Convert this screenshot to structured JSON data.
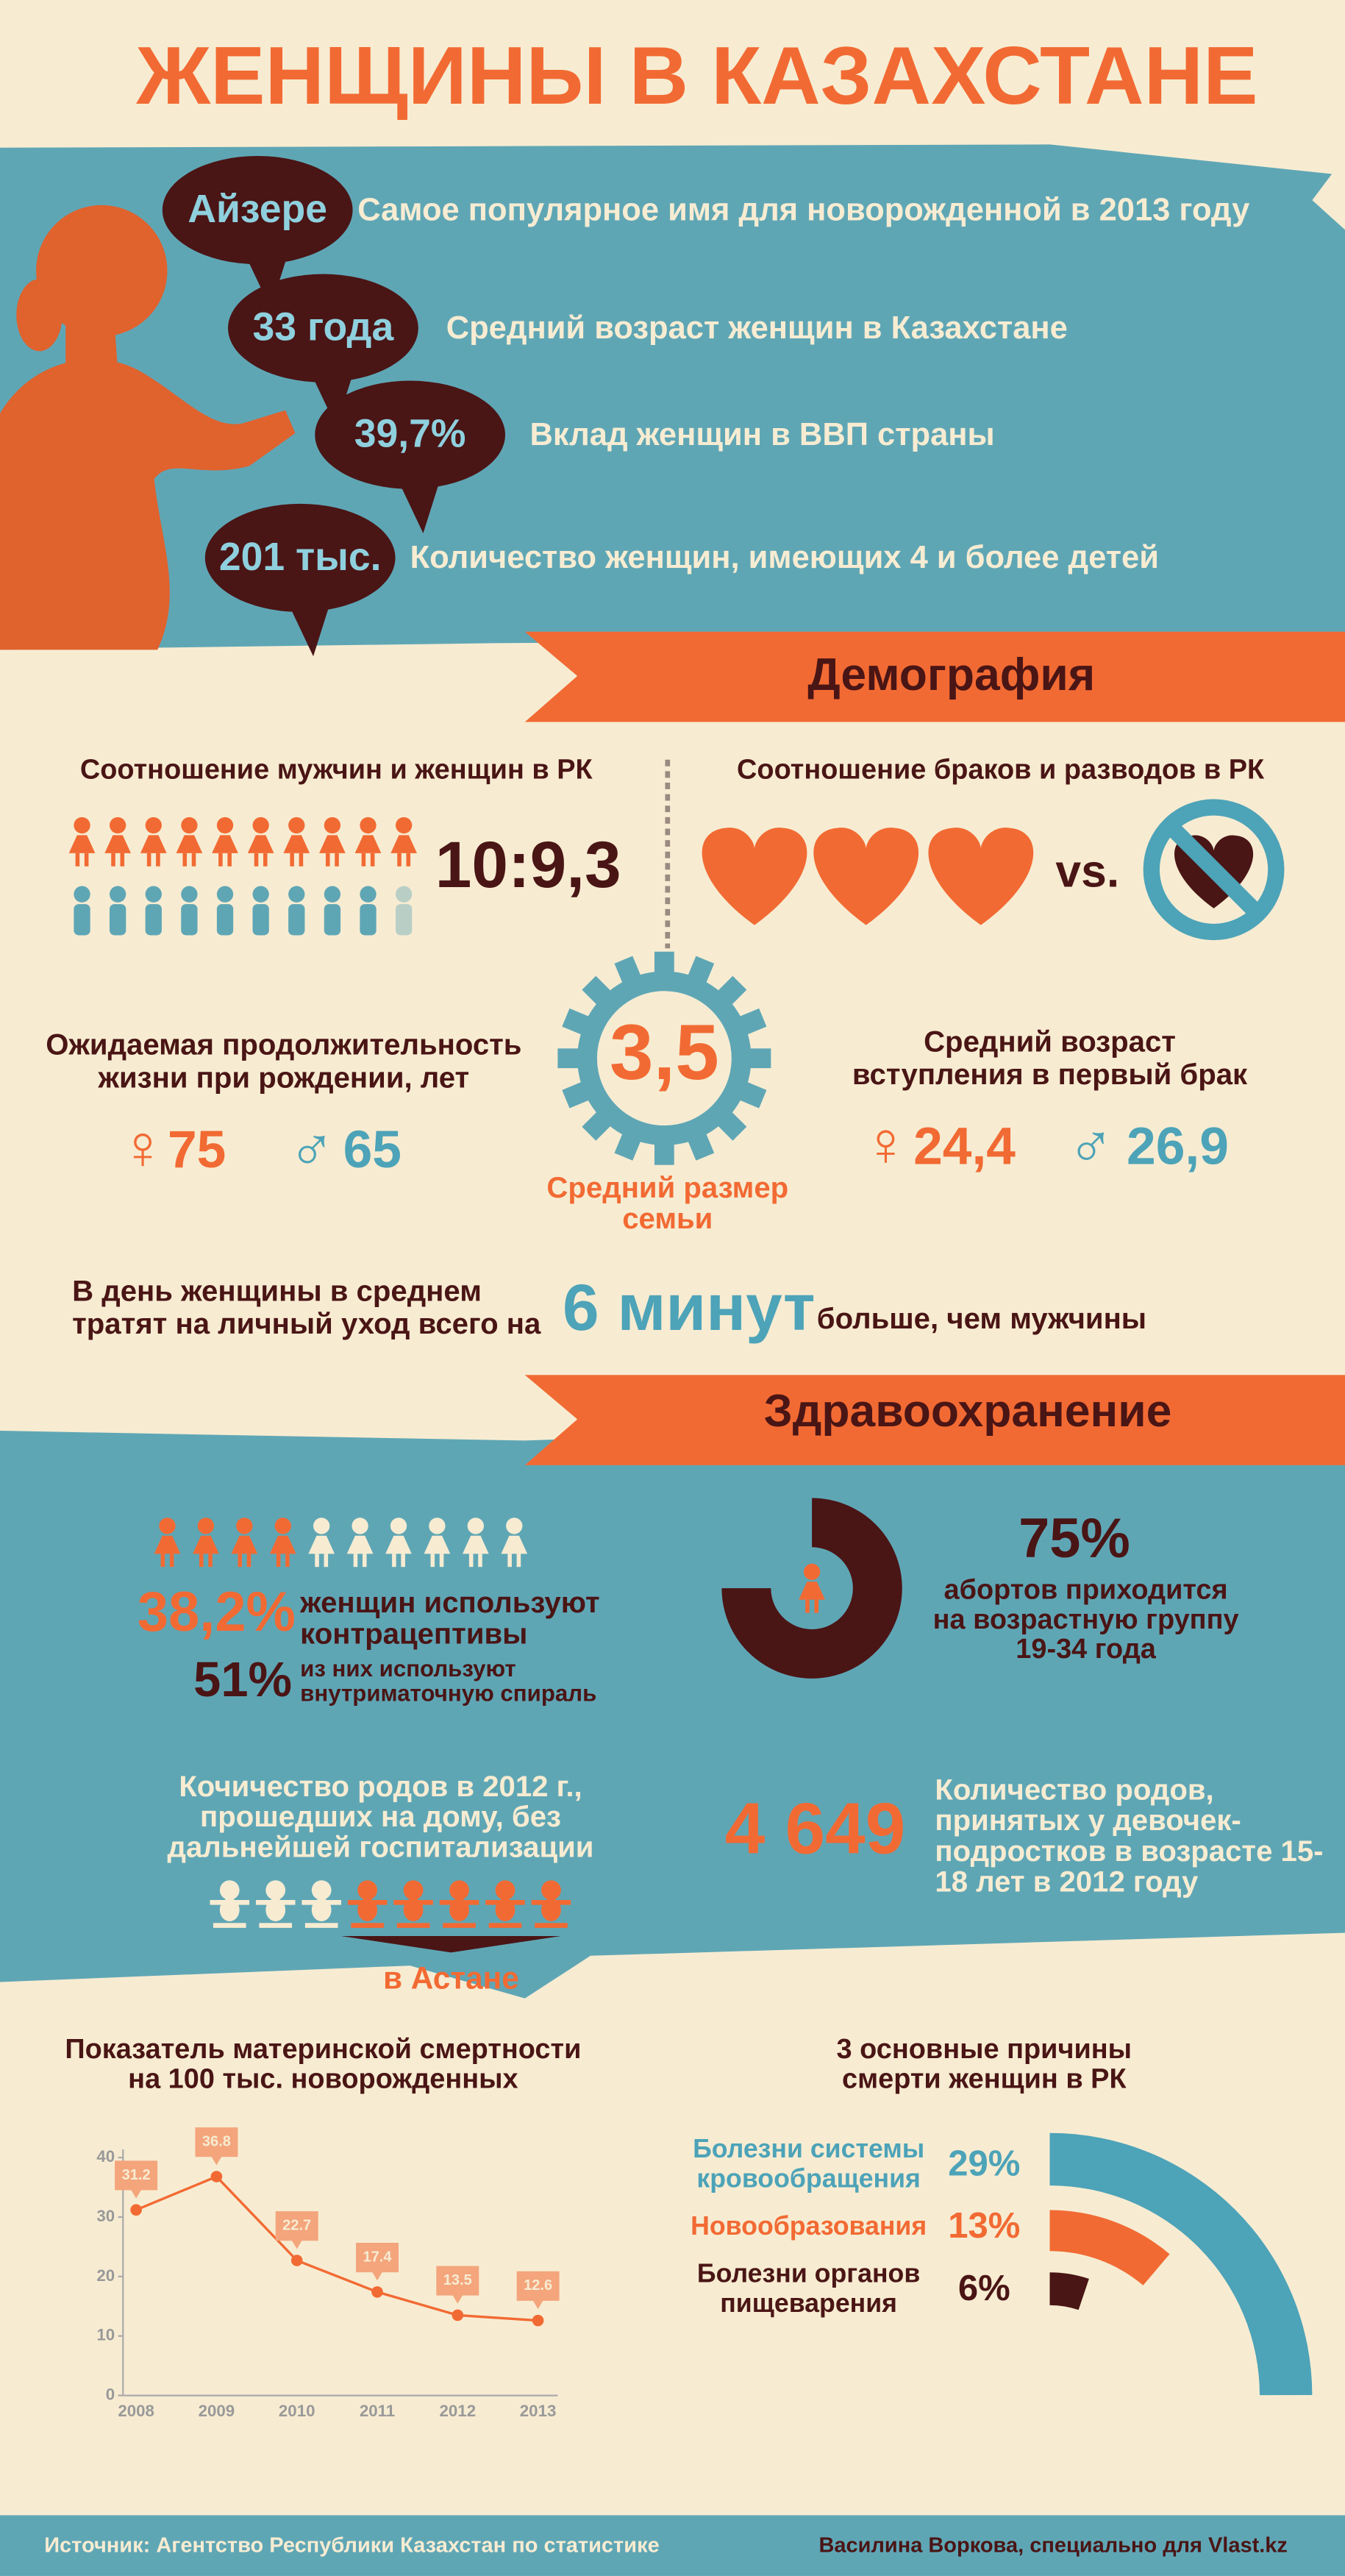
{
  "title": "ЖЕНЩИНЫ В КАЗАХСТАНЕ",
  "facts": [
    {
      "badge": "Айзере",
      "text": "Самое популярное имя для новорожденной в 2013 году"
    },
    {
      "badge": "33 года",
      "text": "Средний возраст женщин в Казахстане"
    },
    {
      "badge": "39,7%",
      "text": "Вклад женщин в ВВП страны"
    },
    {
      "badge": "201 тыс.",
      "text": "Количество женщин, имеющих 4 и более детей"
    }
  ],
  "demography": {
    "heading": "Демография",
    "sex_ratio": {
      "title": "Соотношение мужчин и женщин в РК",
      "value": "10:9,3"
    },
    "marriage_divorce": {
      "title": "Соотношение браков и разводов в РК",
      "vs": "vs."
    },
    "life_expectancy": {
      "title": [
        "Ожидаемая продолжительность",
        "жизни при рождении, лет"
      ],
      "female": {
        "symbol": "♀",
        "value": "75"
      },
      "male": {
        "symbol": "♂",
        "value": "65"
      }
    },
    "family_size": {
      "value": "3,5",
      "label": [
        "Средний размер",
        "семьи"
      ]
    },
    "first_marriage_age": {
      "title": [
        "Средний возраст",
        "вступления в первый брак"
      ],
      "female": {
        "symbol": "♀",
        "value": "24,4"
      },
      "male": {
        "symbol": "♂",
        "value": "26,9"
      }
    },
    "self_care": {
      "text": [
        "В день женщины в среднем",
        "тратят на личный уход всего на"
      ],
      "highlight": "6 минут",
      "tail": "больше, чем мужчины"
    }
  },
  "healthcare": {
    "heading": "Здравоохранение",
    "contraceptives": {
      "percent": "38,2%",
      "text": [
        "женщин используют",
        "контрацептивы"
      ],
      "sub_percent": "51%",
      "sub_text": [
        "из них используют",
        "внутриматочную спираль"
      ]
    },
    "abortions": {
      "percent": "75%",
      "text": [
        "абортов приходится",
        "на возрастную группу",
        "19-34 года"
      ]
    },
    "home_births": {
      "text": [
        "Кочичество родов в 2012 г.,",
        "прошедших на дому, без",
        "дальнейшей госпитализации"
      ],
      "caption": "в Астане"
    },
    "teen_births": {
      "value": "4 649",
      "text": [
        "Количество родов,",
        "принятых у девочек-",
        "подростков в возрасте 15-",
        "18  лет в 2012 году"
      ]
    }
  },
  "chart_data": [
    {
      "type": "line",
      "title": [
        "Показатель материнской смертности",
        "на 100 тыс. новорожденных"
      ],
      "categories": [
        "2008",
        "2009",
        "2010",
        "2011",
        "2012",
        "2013"
      ],
      "values": [
        31.2,
        36.8,
        22.7,
        17.4,
        13.5,
        12.6
      ],
      "color": "#f26a33",
      "ylim": [
        0,
        40
      ],
      "yticks": [
        0,
        10,
        20,
        30,
        40
      ]
    },
    {
      "type": "radial_bar",
      "title": [
        "3 основные причины",
        "смерти женщин в РК"
      ],
      "categories": [
        "Болезни системы кровообращения",
        "Новообразования",
        "Болезни органов пищеварения"
      ],
      "values": [
        29,
        13,
        6
      ],
      "value_labels": [
        "29%",
        "13%",
        "6%"
      ],
      "colors": [
        "#4da3b8",
        "#f26a33",
        "#4a1515"
      ]
    }
  ],
  "footer": {
    "source": "Источник: Агентство Республики Казахстан по статистике",
    "author": "Василина Воркова, специально для Vlast.kz"
  }
}
